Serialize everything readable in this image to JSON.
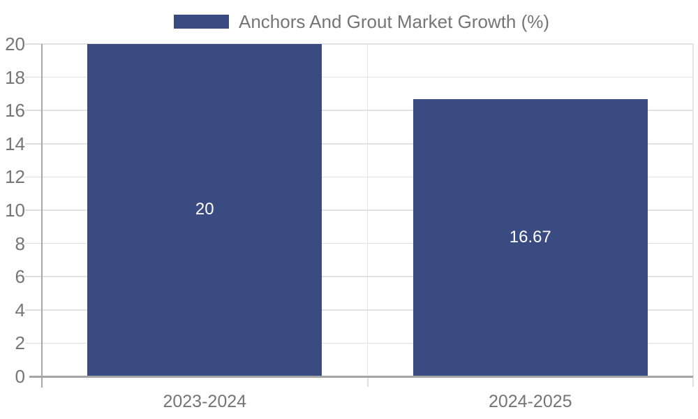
{
  "chart_data": {
    "type": "bar",
    "title": "Anchors And Grout Market Growth (%)",
    "categories": [
      "2023-2024",
      "2024-2025"
    ],
    "values": [
      20,
      16.67
    ],
    "value_labels": [
      "20",
      "16.67"
    ],
    "ylim": [
      0,
      20
    ],
    "yticks": [
      0,
      2,
      4,
      6,
      8,
      10,
      12,
      14,
      16,
      18,
      20
    ],
    "grid": true,
    "legend_position": "top",
    "colors": {
      "bar": "#3a4b81",
      "value_label": "#ffffff",
      "axis_text": "#757575",
      "gridline": "#e2e2e2",
      "spine": "#a5a5a5"
    }
  }
}
